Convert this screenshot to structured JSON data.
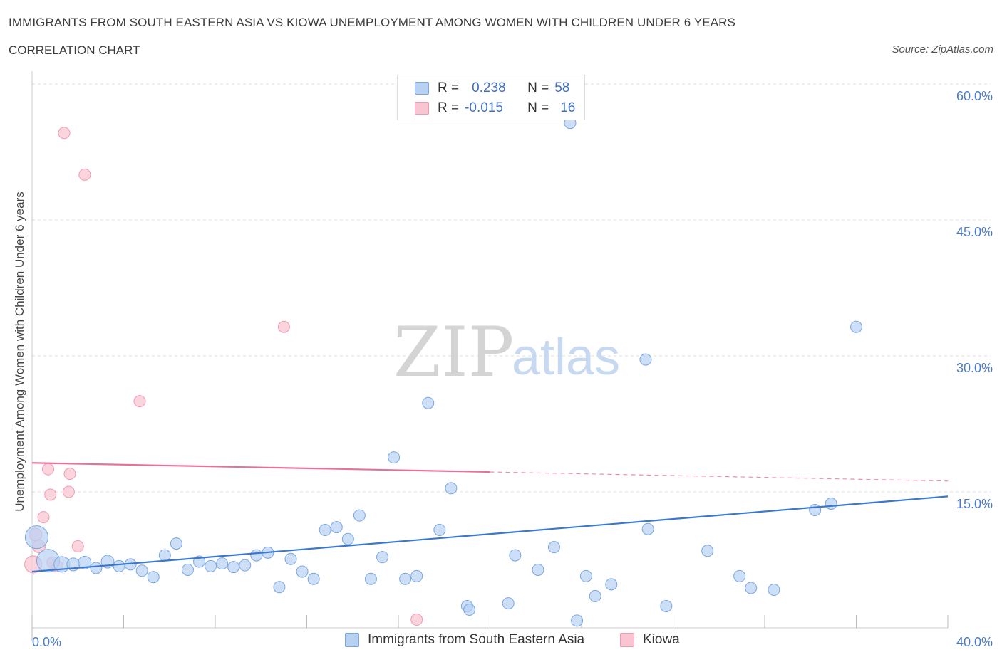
{
  "title": "IMMIGRANTS FROM SOUTH EASTERN ASIA VS KIOWA UNEMPLOYMENT AMONG WOMEN WITH CHILDREN UNDER 6 YEARS",
  "subtitle": "CORRELATION CHART",
  "source": "Source: ZipAtlas.com",
  "watermark": {
    "zip": "ZIP",
    "atlas": "atlas"
  },
  "legend": {
    "rows": [
      {
        "r_label": "R =",
        "r_value": "0.238",
        "n_label": "N =",
        "n_value": "58"
      },
      {
        "r_label": "R =",
        "r_value": "-0.015",
        "n_label": "N =",
        "n_value": "16"
      }
    ]
  },
  "colors": {
    "blue_fill": "#b7d1f3",
    "blue_stroke": "#7aa6e0",
    "blue_line": "#3a78d0",
    "pink_fill": "#f9c5d3",
    "pink_stroke": "#f09ab2",
    "pink_line": "#e8719a",
    "grid": "#dddddd",
    "tick_text": "#4a7bc8"
  },
  "chart_data": {
    "type": "scatter",
    "title": "IMMIGRANTS FROM SOUTH EASTERN ASIA VS KIOWA UNEMPLOYMENT AMONG WOMEN WITH CHILDREN UNDER 6 YEARS",
    "xlabel": "",
    "ylabel": "Unemployment Among Women with Children Under 6 years",
    "xlim": [
      0,
      40
    ],
    "ylim": [
      0,
      60
    ],
    "x_tick_labels": [
      "0.0%",
      "40.0%"
    ],
    "y_ticks": [
      15,
      30,
      45,
      60
    ],
    "y_tick_labels": [
      "15.0%",
      "30.0%",
      "45.0%",
      "60.0%"
    ],
    "grid": "horizontal dashed",
    "legend_position": "top-center and bottom",
    "series": [
      {
        "name": "Immigrants from South Eastern Asia",
        "color": "blue",
        "trend": {
          "x0": 0,
          "y0": 6.2,
          "x1": 40,
          "y1": 14.5
        },
        "points": [
          [
            0.2,
            10.0,
            16
          ],
          [
            0.7,
            7.4,
            16
          ],
          [
            1.3,
            7.0,
            11
          ],
          [
            1.8,
            7.0,
            9
          ],
          [
            2.3,
            7.2,
            9
          ],
          [
            2.8,
            6.6,
            8
          ],
          [
            3.3,
            7.3,
            9
          ],
          [
            3.8,
            6.8,
            8
          ],
          [
            4.3,
            7.0,
            8
          ],
          [
            4.8,
            6.3,
            8
          ],
          [
            5.3,
            5.6,
            8
          ],
          [
            5.8,
            8.0,
            8
          ],
          [
            6.3,
            9.3,
            8
          ],
          [
            6.8,
            6.4,
            8
          ],
          [
            7.3,
            7.3,
            8
          ],
          [
            7.8,
            6.8,
            8
          ],
          [
            8.3,
            7.1,
            8
          ],
          [
            8.8,
            6.7,
            8
          ],
          [
            9.3,
            6.9,
            8
          ],
          [
            9.8,
            8.0,
            8
          ],
          [
            10.3,
            8.3,
            8
          ],
          [
            10.8,
            4.5,
            8
          ],
          [
            11.3,
            7.6,
            8
          ],
          [
            11.8,
            6.2,
            8
          ],
          [
            12.3,
            5.4,
            8
          ],
          [
            12.8,
            10.8,
            8
          ],
          [
            13.3,
            11.1,
            8
          ],
          [
            13.8,
            9.8,
            8
          ],
          [
            14.3,
            12.4,
            8
          ],
          [
            14.8,
            5.4,
            8
          ],
          [
            15.3,
            7.8,
            8
          ],
          [
            15.8,
            18.8,
            8
          ],
          [
            16.3,
            5.4,
            8
          ],
          [
            16.8,
            5.7,
            8
          ],
          [
            17.3,
            24.8,
            8
          ],
          [
            17.8,
            10.8,
            8
          ],
          [
            18.3,
            15.4,
            8
          ],
          [
            19.0,
            2.4,
            8
          ],
          [
            19.1,
            2.0,
            8
          ],
          [
            20.8,
            2.7,
            8
          ],
          [
            21.1,
            8.0,
            8
          ],
          [
            22.1,
            6.4,
            8
          ],
          [
            22.8,
            8.9,
            8
          ],
          [
            23.5,
            55.7,
            8
          ],
          [
            24.2,
            5.7,
            8
          ],
          [
            24.6,
            3.5,
            8
          ],
          [
            25.3,
            4.8,
            8
          ],
          [
            26.8,
            29.6,
            8
          ],
          [
            26.9,
            10.9,
            8
          ],
          [
            27.7,
            2.4,
            8
          ],
          [
            29.5,
            8.5,
            8
          ],
          [
            30.9,
            5.7,
            8
          ],
          [
            31.4,
            4.4,
            8
          ],
          [
            32.4,
            4.2,
            8
          ],
          [
            34.2,
            13.0,
            8
          ],
          [
            34.9,
            13.7,
            8
          ],
          [
            36.0,
            33.2,
            8
          ],
          [
            23.8,
            0.8,
            8
          ]
        ]
      },
      {
        "name": "Kiowa",
        "color": "pink",
        "trend": {
          "x0": 0,
          "y0": 18.2,
          "x1": 20.0,
          "y1": 17.2,
          "dashed_to_x": 40,
          "dashed_to_y": 16.2
        },
        "points": [
          [
            0.15,
            10.3,
            9
          ],
          [
            0.3,
            9.0,
            9
          ],
          [
            0.5,
            12.2,
            8
          ],
          [
            0.7,
            17.5,
            8
          ],
          [
            0.8,
            14.7,
            8
          ],
          [
            1.1,
            6.8,
            8
          ],
          [
            1.4,
            54.6,
            8
          ],
          [
            1.6,
            15.0,
            8
          ],
          [
            1.65,
            17.0,
            8
          ],
          [
            2.0,
            9.0,
            8
          ],
          [
            2.3,
            50.0,
            8
          ],
          [
            4.7,
            25.0,
            8
          ],
          [
            11.0,
            33.2,
            8
          ],
          [
            16.8,
            0.9,
            8
          ],
          [
            0.05,
            7.0,
            12
          ],
          [
            0.9,
            7.2,
            8
          ]
        ]
      }
    ]
  },
  "bottom_legend": [
    {
      "label": "Immigrants from South Eastern Asia"
    },
    {
      "label": "Kiowa"
    }
  ]
}
